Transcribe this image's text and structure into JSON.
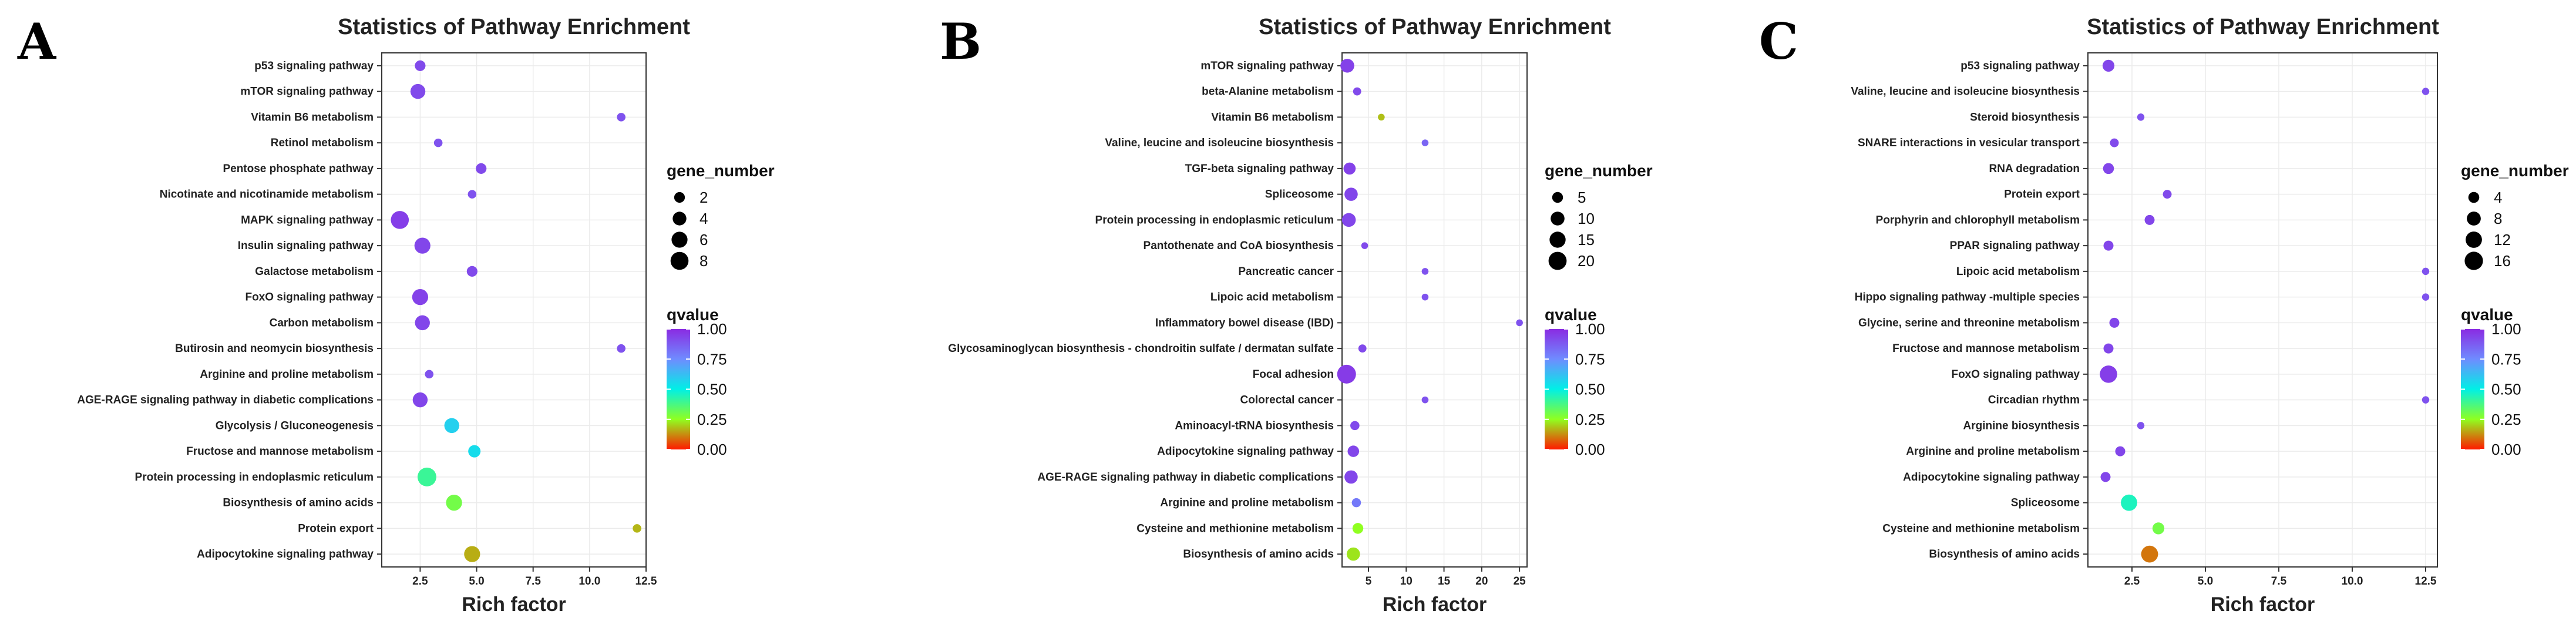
{
  "chart_data": [
    {
      "type": "scatter",
      "panel_label": "A",
      "title": "Statistics of Pathway Enrichment",
      "xlabel": "Rich factor",
      "ylabel": "",
      "xlim": [
        0.8,
        12.5
      ],
      "xticks": [
        2.5,
        5.0,
        7.5,
        10.0,
        12.5
      ],
      "xtick_labels": [
        "2.5",
        "5.0",
        "7.5",
        "10.0",
        "12.5"
      ],
      "size_legend": {
        "title": "gene_number",
        "values": [
          2,
          4,
          6,
          8
        ],
        "min": 1,
        "max": 9
      },
      "color_legend": {
        "title": "qvalue",
        "ticks": [
          1.0,
          0.75,
          0.5,
          0.25,
          0.0
        ],
        "tick_labels": [
          "1.00",
          "0.75",
          "0.50",
          "0.25",
          "0.00"
        ]
      },
      "points": [
        {
          "pathway": "p53 signaling pathway",
          "rich_factor": 2.5,
          "gene_number": 2,
          "qvalue": 0.92
        },
        {
          "pathway": "mTOR signaling pathway",
          "rich_factor": 2.4,
          "gene_number": 5,
          "qvalue": 0.92
        },
        {
          "pathway": "Vitamin B6 metabolism",
          "rich_factor": 11.4,
          "gene_number": 1,
          "qvalue": 0.9
        },
        {
          "pathway": "Retinol metabolism",
          "rich_factor": 3.3,
          "gene_number": 1,
          "qvalue": 0.9
        },
        {
          "pathway": "Pentose phosphate pathway",
          "rich_factor": 5.2,
          "gene_number": 2,
          "qvalue": 0.92
        },
        {
          "pathway": "Nicotinate and nicotinamide metabolism",
          "rich_factor": 4.8,
          "gene_number": 1,
          "qvalue": 0.9
        },
        {
          "pathway": "MAPK signaling pathway",
          "rich_factor": 1.6,
          "gene_number": 8,
          "qvalue": 0.95
        },
        {
          "pathway": "Insulin signaling pathway",
          "rich_factor": 2.6,
          "gene_number": 6,
          "qvalue": 0.93
        },
        {
          "pathway": "Galactose metabolism",
          "rich_factor": 4.8,
          "gene_number": 2,
          "qvalue": 0.92
        },
        {
          "pathway": "FoxO signaling pathway",
          "rich_factor": 2.5,
          "gene_number": 6,
          "qvalue": 0.94
        },
        {
          "pathway": "Carbon metabolism",
          "rich_factor": 2.6,
          "gene_number": 5,
          "qvalue": 0.93
        },
        {
          "pathway": "Butirosin and neomycin biosynthesis",
          "rich_factor": 11.4,
          "gene_number": 1,
          "qvalue": 0.9
        },
        {
          "pathway": "Arginine and proline metabolism",
          "rich_factor": 2.9,
          "gene_number": 1,
          "qvalue": 0.9
        },
        {
          "pathway": "AGE-RAGE signaling pathway in diabetic complications",
          "rich_factor": 2.5,
          "gene_number": 5,
          "qvalue": 0.93
        },
        {
          "pathway": "Glycolysis / Gluconeogenesis",
          "rich_factor": 3.9,
          "gene_number": 5,
          "qvalue": 0.58
        },
        {
          "pathway": "Fructose and mannose metabolism",
          "rich_factor": 4.9,
          "gene_number": 3,
          "qvalue": 0.55
        },
        {
          "pathway": "Protein processing in endoplasmic reticulum",
          "rich_factor": 2.8,
          "gene_number": 9,
          "qvalue": 0.4
        },
        {
          "pathway": "Biosynthesis of amino acids",
          "rich_factor": 4.0,
          "gene_number": 6,
          "qvalue": 0.3
        },
        {
          "pathway": "Protein export",
          "rich_factor": 12.1,
          "gene_number": 1,
          "qvalue": 0.17
        },
        {
          "pathway": "Adipocytokine signaling pathway",
          "rich_factor": 4.8,
          "gene_number": 6,
          "qvalue": 0.16
        }
      ]
    },
    {
      "type": "scatter",
      "panel_label": "B",
      "title": "Statistics of Pathway Enrichment",
      "xlabel": "Rich factor",
      "ylabel": "",
      "xlim": [
        1.5,
        26
      ],
      "xticks": [
        5,
        10,
        15,
        20,
        25
      ],
      "xtick_labels": [
        "5",
        "10",
        "15",
        "20",
        "25"
      ],
      "size_legend": {
        "title": "gene_number",
        "values": [
          5,
          10,
          15,
          20
        ],
        "min": 1,
        "max": 22
      },
      "color_legend": {
        "title": "qvalue",
        "ticks": [
          1.0,
          0.75,
          0.5,
          0.25,
          0.0
        ],
        "tick_labels": [
          "1.00",
          "0.75",
          "0.50",
          "0.25",
          "0.00"
        ]
      },
      "points": [
        {
          "pathway": "mTOR signaling pathway",
          "rich_factor": 2.2,
          "gene_number": 10,
          "qvalue": 0.94
        },
        {
          "pathway": "beta-Alanine metabolism",
          "rich_factor": 3.5,
          "gene_number": 2,
          "qvalue": 0.92
        },
        {
          "pathway": "Vitamin B6 metabolism",
          "rich_factor": 6.7,
          "gene_number": 1,
          "qvalue": 0.18
        },
        {
          "pathway": "Valine, leucine and isoleucine biosynthesis",
          "rich_factor": 12.5,
          "gene_number": 1,
          "qvalue": 0.85
        },
        {
          "pathway": "TGF-beta signaling pathway",
          "rich_factor": 2.5,
          "gene_number": 7,
          "qvalue": 0.94
        },
        {
          "pathway": "Spliceosome",
          "rich_factor": 2.7,
          "gene_number": 9,
          "qvalue": 0.93
        },
        {
          "pathway": "Protein processing in endoplasmic reticulum",
          "rich_factor": 2.4,
          "gene_number": 10,
          "qvalue": 0.93
        },
        {
          "pathway": "Pantothenate and CoA biosynthesis",
          "rich_factor": 4.5,
          "gene_number": 1,
          "qvalue": 0.92
        },
        {
          "pathway": "Pancreatic cancer",
          "rich_factor": 12.5,
          "gene_number": 1,
          "qvalue": 0.9
        },
        {
          "pathway": "Lipoic acid metabolism",
          "rich_factor": 12.5,
          "gene_number": 1,
          "qvalue": 0.9
        },
        {
          "pathway": "Inflammatory bowel disease (IBD)",
          "rich_factor": 25.0,
          "gene_number": 1,
          "qvalue": 0.9
        },
        {
          "pathway": "Glycosaminoglycan biosynthesis - chondroitin sulfate / dermatan sulfate",
          "rich_factor": 4.2,
          "gene_number": 2,
          "qvalue": 0.92
        },
        {
          "pathway": "Focal adhesion",
          "rich_factor": 2.1,
          "gene_number": 22,
          "qvalue": 0.96
        },
        {
          "pathway": "Colorectal cancer",
          "rich_factor": 12.5,
          "gene_number": 1,
          "qvalue": 0.9
        },
        {
          "pathway": "Aminoacyl-tRNA biosynthesis",
          "rich_factor": 3.2,
          "gene_number": 3,
          "qvalue": 0.92
        },
        {
          "pathway": "Adipocytokine signaling pathway",
          "rich_factor": 3.0,
          "gene_number": 6,
          "qvalue": 0.93
        },
        {
          "pathway": "AGE-RAGE signaling pathway in diabetic complications",
          "rich_factor": 2.7,
          "gene_number": 9,
          "qvalue": 0.93
        },
        {
          "pathway": "Arginine and proline metabolism",
          "rich_factor": 3.4,
          "gene_number": 3,
          "qvalue": 0.8
        },
        {
          "pathway": "Cysteine and methionine metabolism",
          "rich_factor": 3.6,
          "gene_number": 5,
          "qvalue": 0.25
        },
        {
          "pathway": "Biosynthesis of amino acids",
          "rich_factor": 3.0,
          "gene_number": 9,
          "qvalue": 0.22
        }
      ]
    },
    {
      "type": "scatter",
      "panel_label": "C",
      "title": "Statistics of Pathway Enrichment",
      "xlabel": "Rich factor",
      "ylabel": "",
      "xlim": [
        1.0,
        12.9
      ],
      "xticks": [
        2.5,
        5.0,
        7.5,
        10.0,
        12.5
      ],
      "xtick_labels": [
        "2.5",
        "5.0",
        "7.5",
        "10.0",
        "12.5"
      ],
      "size_legend": {
        "title": "gene_number",
        "values": [
          4,
          8,
          12,
          16
        ],
        "min": 1,
        "max": 17
      },
      "color_legend": {
        "title": "qvalue",
        "ticks": [
          1.0,
          0.75,
          0.5,
          0.25,
          0.0
        ],
        "tick_labels": [
          "1.00",
          "0.75",
          "0.50",
          "0.25",
          "0.00"
        ]
      },
      "points": [
        {
          "pathway": "p53 signaling pathway",
          "rich_factor": 1.7,
          "gene_number": 5,
          "qvalue": 0.93
        },
        {
          "pathway": "Valine, leucine and isoleucine biosynthesis",
          "rich_factor": 12.5,
          "gene_number": 1,
          "qvalue": 0.9
        },
        {
          "pathway": "Steroid biosynthesis",
          "rich_factor": 2.8,
          "gene_number": 1,
          "qvalue": 0.9
        },
        {
          "pathway": "SNARE interactions in vesicular transport",
          "rich_factor": 1.9,
          "gene_number": 2,
          "qvalue": 0.92
        },
        {
          "pathway": "RNA degradation",
          "rich_factor": 1.7,
          "gene_number": 4,
          "qvalue": 0.93
        },
        {
          "pathway": "Protein export",
          "rich_factor": 3.7,
          "gene_number": 2,
          "qvalue": 0.92
        },
        {
          "pathway": "Porphyrin and chlorophyll metabolism",
          "rich_factor": 3.1,
          "gene_number": 3,
          "qvalue": 0.93
        },
        {
          "pathway": "PPAR signaling pathway",
          "rich_factor": 1.7,
          "gene_number": 3,
          "qvalue": 0.93
        },
        {
          "pathway": "Lipoic acid metabolism",
          "rich_factor": 12.5,
          "gene_number": 1,
          "qvalue": 0.9
        },
        {
          "pathway": "Hippo signaling pathway -multiple species",
          "rich_factor": 12.5,
          "gene_number": 1,
          "qvalue": 0.9
        },
        {
          "pathway": "Glycine, serine and threonine metabolism",
          "rich_factor": 1.9,
          "gene_number": 3,
          "qvalue": 0.93
        },
        {
          "pathway": "Fructose and mannose metabolism",
          "rich_factor": 1.7,
          "gene_number": 3,
          "qvalue": 0.93
        },
        {
          "pathway": "FoxO signaling pathway",
          "rich_factor": 1.7,
          "gene_number": 14,
          "qvalue": 0.95
        },
        {
          "pathway": "Circadian rhythm",
          "rich_factor": 12.5,
          "gene_number": 1,
          "qvalue": 0.9
        },
        {
          "pathway": "Arginine biosynthesis",
          "rich_factor": 2.8,
          "gene_number": 1,
          "qvalue": 0.9
        },
        {
          "pathway": "Arginine and proline metabolism",
          "rich_factor": 2.1,
          "gene_number": 3,
          "qvalue": 0.93
        },
        {
          "pathway": "Adipocytokine signaling pathway",
          "rich_factor": 1.6,
          "gene_number": 3,
          "qvalue": 0.93
        },
        {
          "pathway": "Spliceosome",
          "rich_factor": 2.4,
          "gene_number": 12,
          "qvalue": 0.45
        },
        {
          "pathway": "Cysteine and methionine metabolism",
          "rich_factor": 3.4,
          "gene_number": 5,
          "qvalue": 0.3
        },
        {
          "pathway": "Biosynthesis of amino acids",
          "rich_factor": 3.1,
          "gene_number": 13,
          "qvalue": 0.1
        }
      ]
    }
  ]
}
